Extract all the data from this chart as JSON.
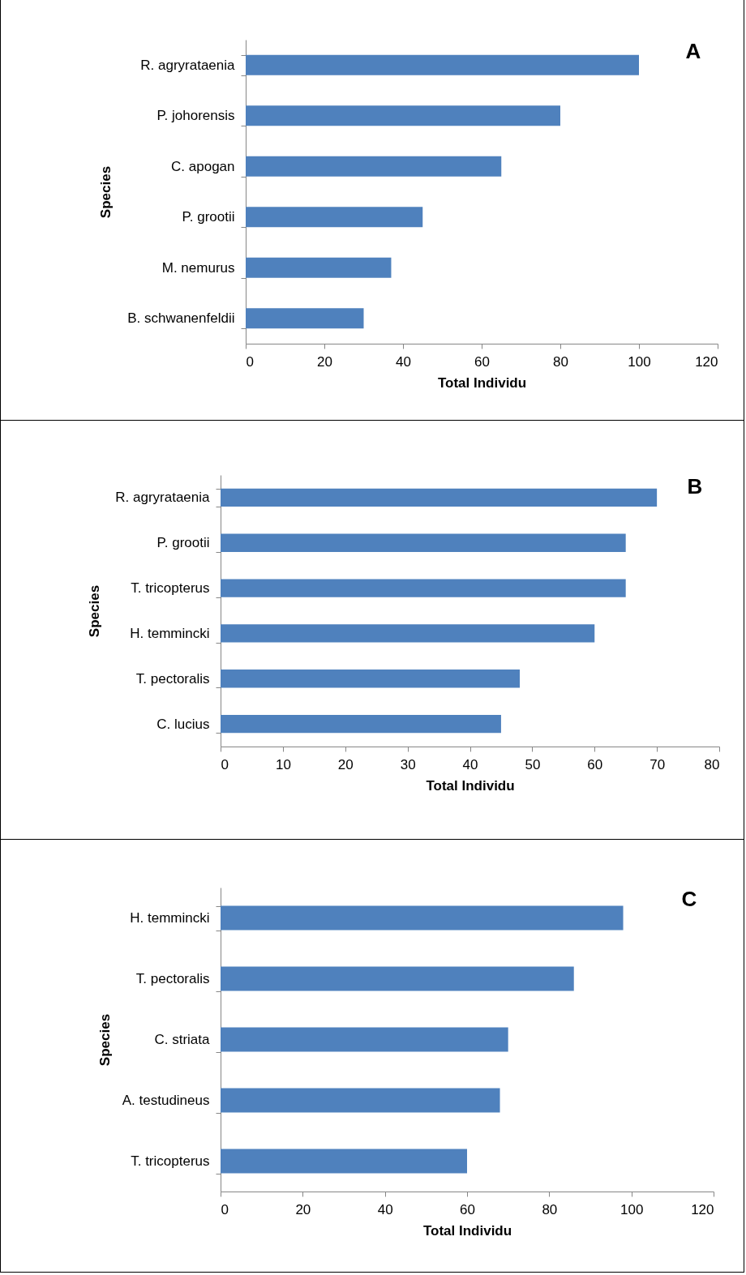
{
  "chart_data": [
    {
      "type": "bar",
      "orientation": "horizontal",
      "categories": [
        "R.  agryrataenia",
        "P. johorensis",
        "C.  apogan",
        "P.  grootii",
        "M. nemurus",
        "B.  schwanenfeldii"
      ],
      "values": [
        100,
        80,
        65,
        45,
        37,
        30
      ],
      "color": "#4f81bd",
      "xlim": [
        0,
        120
      ],
      "xticks": [
        0,
        20,
        40,
        60,
        80,
        100,
        120
      ],
      "xlabel": "Total Individu",
      "ylabel": "Species",
      "annotations": [
        "A"
      ],
      "grid": false
    },
    {
      "type": "bar",
      "orientation": "horizontal",
      "categories": [
        "R.  agryrataenia",
        "P.  grootii",
        "T.  tricopterus",
        "H.  temmincki",
        "T.  pectoralis",
        "C.  lucius"
      ],
      "values": [
        70,
        65,
        65,
        60,
        48,
        45
      ],
      "color": "#4f81bd",
      "xlim": [
        0,
        80
      ],
      "xticks": [
        0,
        10,
        20,
        30,
        40,
        50,
        60,
        70,
        80
      ],
      "xlabel": "Total Individu",
      "ylabel": "Species",
      "annotations": [
        "B"
      ],
      "grid": false
    },
    {
      "type": "bar",
      "orientation": "horizontal",
      "categories": [
        "H.  temmincki",
        "T.  pectoralis",
        "C.  striata",
        "A. testudineus",
        "T. tricopterus"
      ],
      "values": [
        98,
        86,
        70,
        68,
        60
      ],
      "color": "#4f81bd",
      "xlim": [
        0,
        120
      ],
      "xticks": [
        0,
        20,
        40,
        60,
        80,
        100,
        120
      ],
      "xlabel": "Total Individu",
      "ylabel": "Species",
      "annotations": [
        "C"
      ],
      "grid": false
    }
  ]
}
